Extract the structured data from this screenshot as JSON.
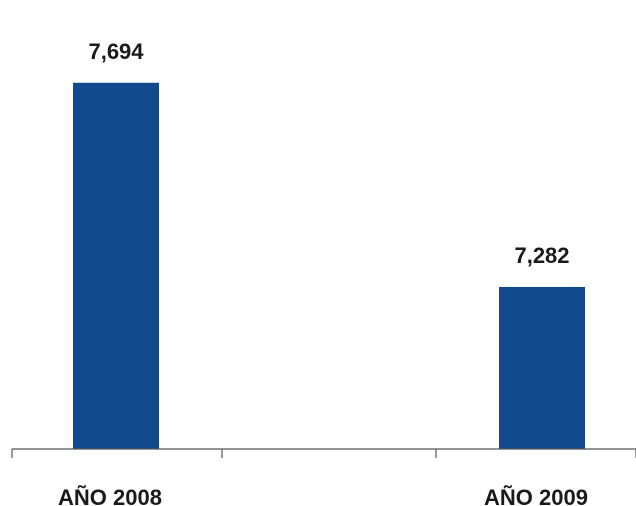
{
  "chart_data": {
    "type": "bar",
    "categories": [
      "AÑO 2008",
      "AÑO 2009"
    ],
    "values": [
      7.694,
      7.282
    ],
    "value_labels": [
      "7,694",
      "7,282"
    ],
    "title": "",
    "xlabel": "",
    "ylabel": "",
    "ylim": [
      6.955,
      7.744
    ],
    "grid": false,
    "legend": "none",
    "bar_color": "#134a8e",
    "axis_color": "#555555"
  }
}
